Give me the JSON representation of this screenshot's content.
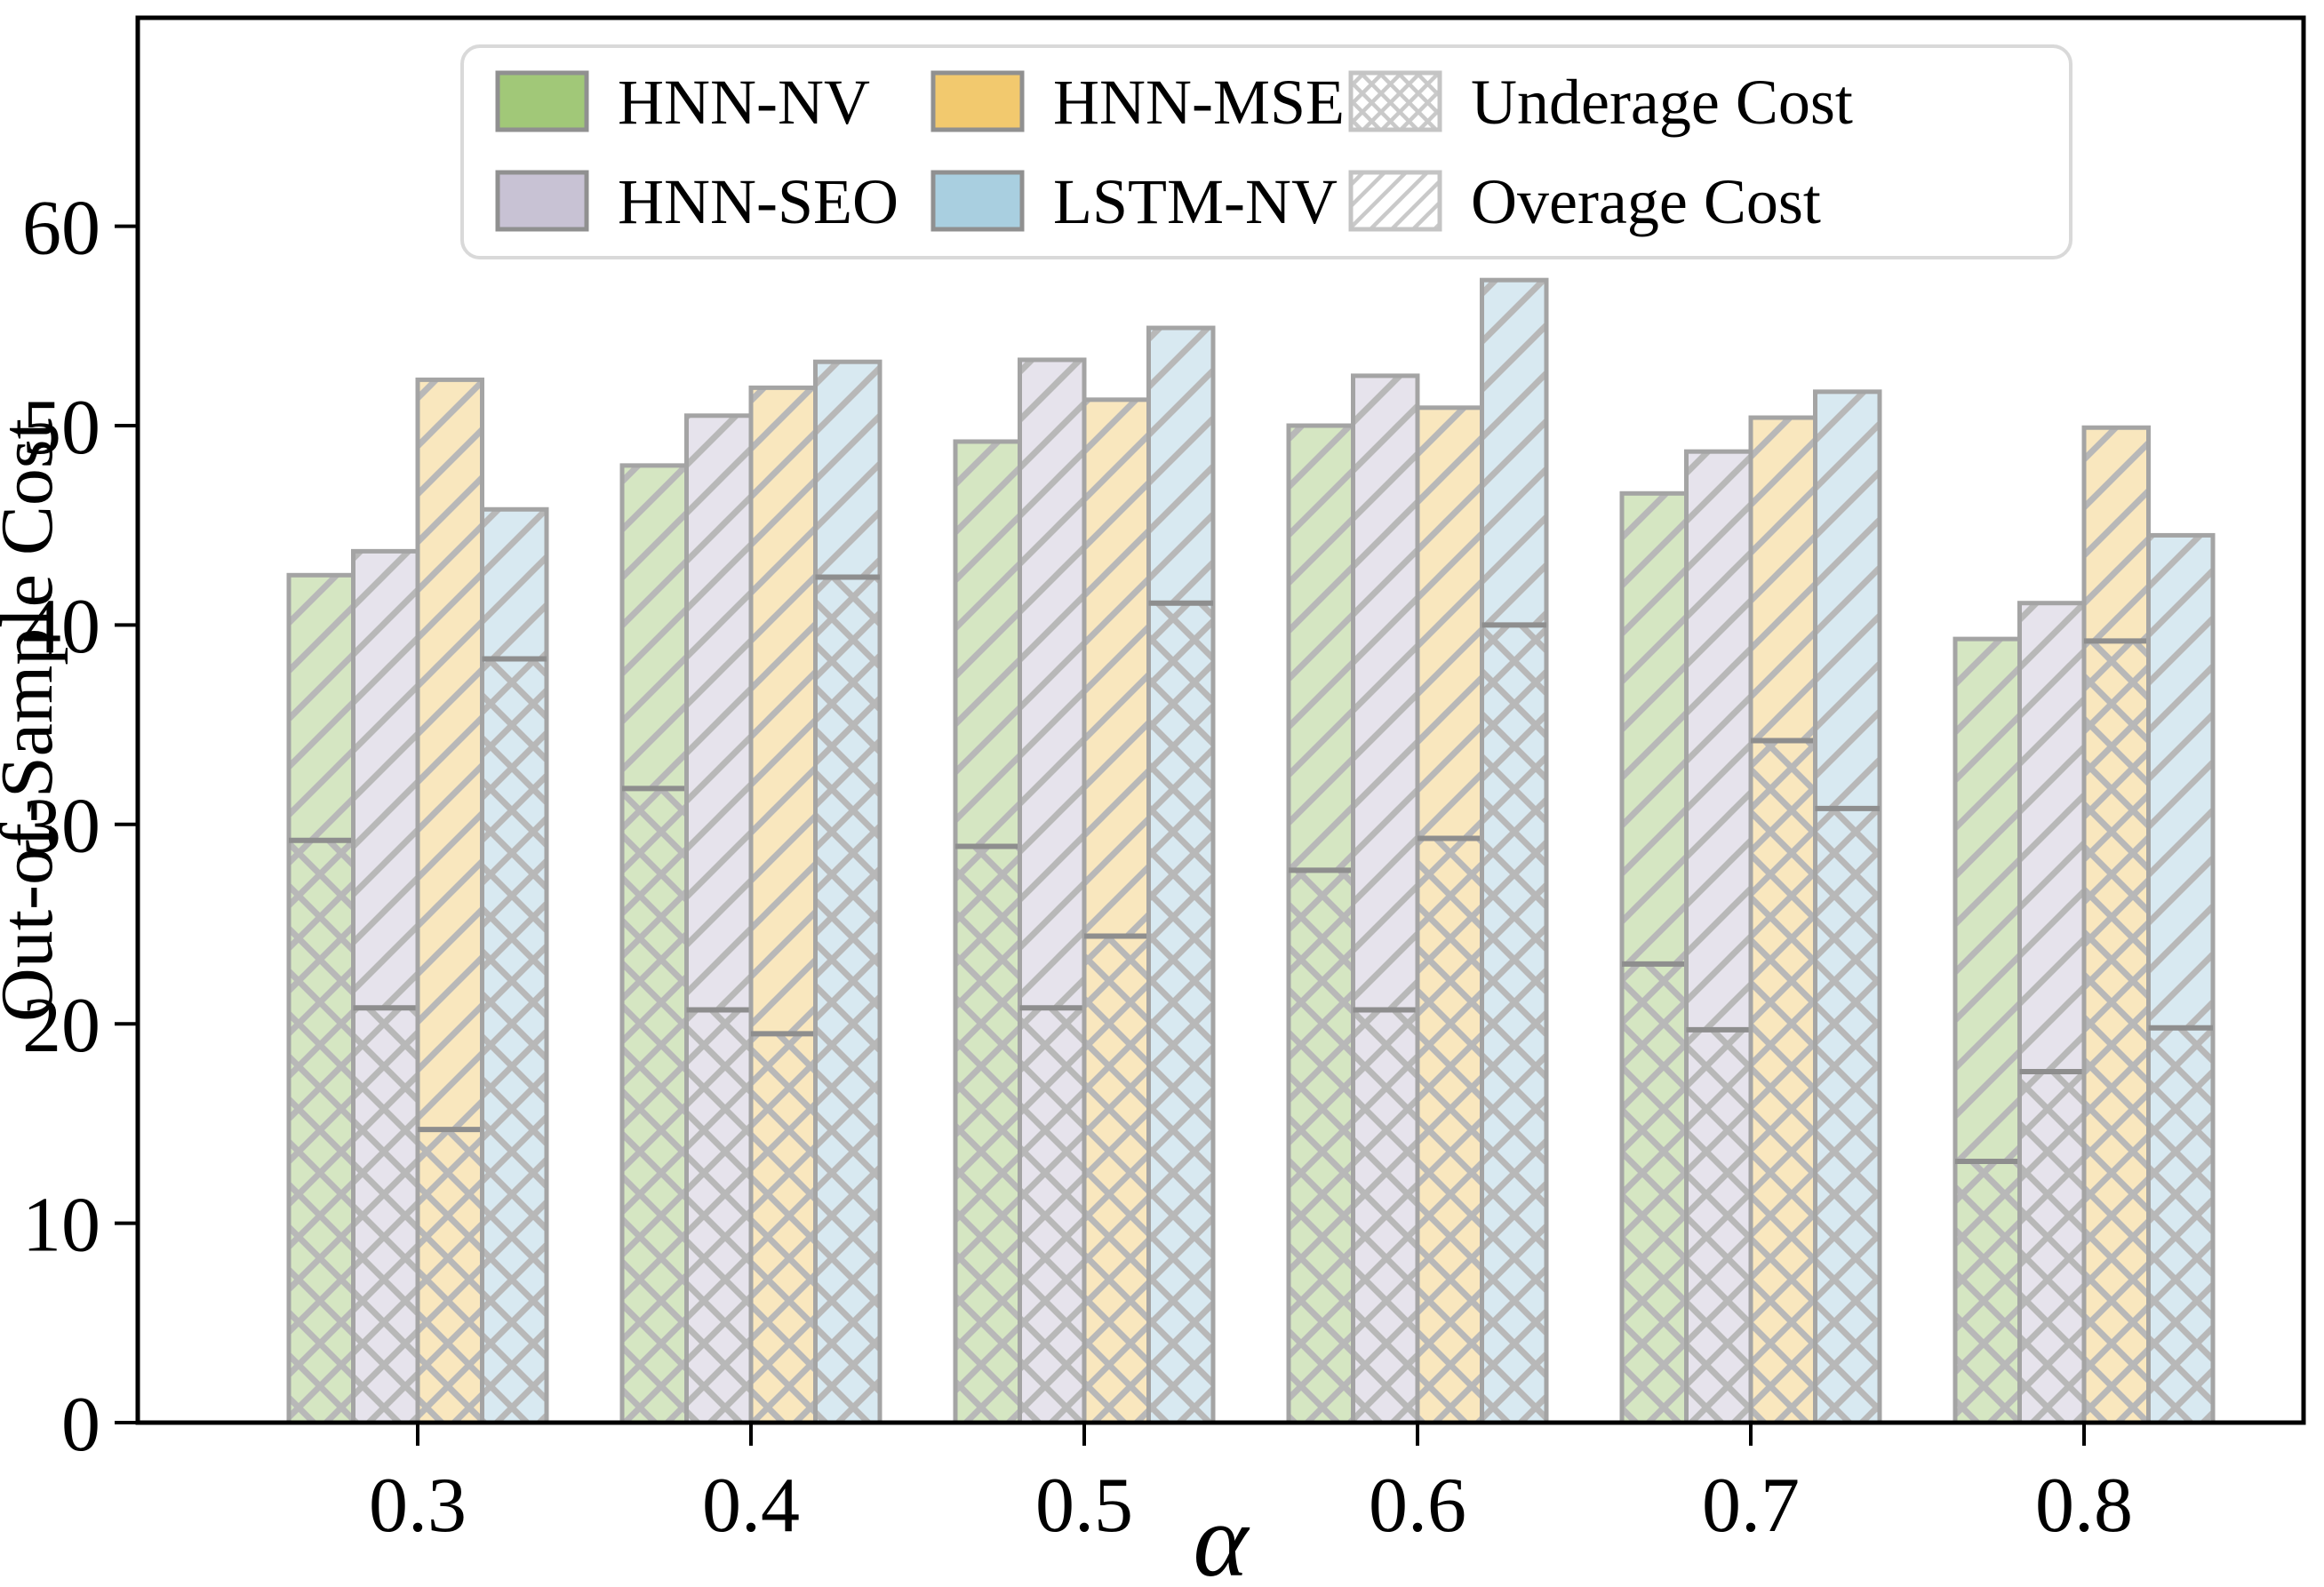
{
  "figure": {
    "xlabel": "α",
    "ylabel": "Out-of-Sample Cost",
    "x_tick_labels": [
      "0.3",
      "0.4",
      "0.5",
      "0.6",
      "0.7",
      "0.8"
    ],
    "y_tick_labels": [
      "0",
      "10",
      "20",
      "30",
      "40",
      "50",
      "60"
    ]
  },
  "legend": {
    "series": [
      {
        "label": "HNN-NV",
        "color": "#a1c878"
      },
      {
        "label": "HNN-SEO",
        "color": "#c8c2d4"
      },
      {
        "label": "HNN-MSE",
        "color": "#f2c96e"
      },
      {
        "label": "LSTM-NV",
        "color": "#a9cfe0"
      }
    ],
    "cost_types": [
      {
        "label": "Underage Cost",
        "hatch": "cross"
      },
      {
        "label": "Overage Cost",
        "hatch": "diag"
      }
    ]
  },
  "chart_data": {
    "type": "bar",
    "subtype": "grouped-stacked",
    "title": "",
    "xlabel": "α",
    "ylabel": "Out-of-Sample Cost",
    "categories": [
      0.3,
      0.4,
      0.5,
      0.6,
      0.7,
      0.8
    ],
    "ylim": [
      0,
      70
    ],
    "y_ticks": [
      0,
      10,
      20,
      30,
      40,
      50,
      60
    ],
    "grid": false,
    "legend_position": "upper center",
    "stack_order_note": "bottom segment = Underage Cost (xx hatch), top segment = Overage Cost (// hatch)",
    "series": [
      {
        "name": "HNN-NV",
        "color": "#a1c878",
        "total_cost": [
          42.5,
          48.0,
          49.2,
          50.0,
          46.6,
          39.3
        ],
        "underage_cost": [
          29.2,
          31.8,
          28.9,
          27.7,
          23.0,
          13.1
        ],
        "overage_cost": [
          13.3,
          16.2,
          20.3,
          22.3,
          23.6,
          26.2
        ]
      },
      {
        "name": "HNN-SEO",
        "color": "#c8c2d4",
        "total_cost": [
          43.7,
          50.5,
          53.3,
          52.5,
          48.7,
          41.1
        ],
        "underage_cost": [
          20.8,
          20.7,
          20.8,
          20.7,
          19.7,
          17.6
        ],
        "overage_cost": [
          22.9,
          29.8,
          32.5,
          31.8,
          29.0,
          23.5
        ]
      },
      {
        "name": "HNN-MSE",
        "color": "#f2c96e",
        "total_cost": [
          52.3,
          51.9,
          51.3,
          50.9,
          50.4,
          49.9
        ],
        "underage_cost": [
          14.7,
          19.5,
          24.4,
          29.3,
          34.2,
          39.2
        ],
        "overage_cost": [
          37.6,
          32.4,
          26.9,
          21.6,
          16.2,
          10.7
        ]
      },
      {
        "name": "LSTM-NV",
        "color": "#a9cfe0",
        "total_cost": [
          45.8,
          53.2,
          54.9,
          57.3,
          51.7,
          44.5
        ],
        "underage_cost": [
          38.3,
          42.4,
          41.1,
          40.0,
          30.8,
          19.8
        ],
        "overage_cost": [
          7.5,
          10.8,
          13.8,
          17.3,
          20.9,
          24.7
        ]
      }
    ],
    "hatches": {
      "underage": "xx",
      "overage": "//"
    },
    "colors": {
      "bar_fill_opacity": 0.45,
      "bar_edge": "#a4a4a4",
      "divider": "#8e8e8e",
      "hatch": "#b8b8b8",
      "legend_border": "#d9d9d9",
      "spine": "#000000"
    }
  }
}
